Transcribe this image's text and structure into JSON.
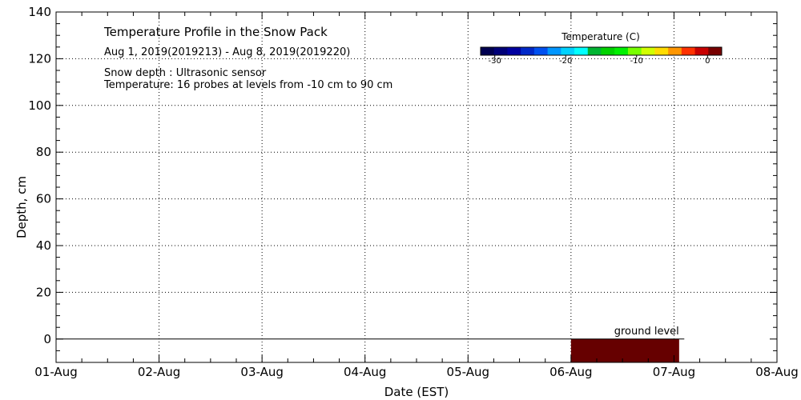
{
  "chart_data": {
    "type": "heatmap",
    "title": "Temperature Profile in the Snow Pack",
    "subtitle": "Aug  1, 2019(2019213) - Aug  8, 2019(2019220)",
    "notes": [
      "Snow depth : Ultrasonic sensor",
      "Temperature: 16 probes at levels from -10 cm to 90 cm"
    ],
    "xlabel": "Date (EST)",
    "ylabel": "Depth, cm",
    "x_tick_labels": [
      "01-Aug",
      "02-Aug",
      "03-Aug",
      "04-Aug",
      "05-Aug",
      "06-Aug",
      "07-Aug",
      "08-Aug"
    ],
    "xlim_days": [
      1,
      8
    ],
    "y_ticks": [
      0,
      20,
      40,
      60,
      80,
      100,
      120,
      140
    ],
    "ylim": [
      -10,
      140
    ],
    "grid": true,
    "ground_level": {
      "label": "ground level",
      "depth": 0,
      "line_start_day": 1,
      "line_end_day": 7.1
    },
    "cells": [
      {
        "x_start_day": 6.0,
        "x_end_day": 7.05,
        "y_start": -10,
        "y_end": 0,
        "color": "#660000"
      }
    ],
    "colorbar": {
      "label": "Temperature (C)",
      "min": -32,
      "max": 2,
      "ticks": [
        -30,
        -20,
        -10,
        0
      ],
      "tick_labels": [
        "-30",
        "-20",
        "-10",
        "0"
      ],
      "colors": [
        "#000050",
        "#000078",
        "#0000a0",
        "#0028c8",
        "#0050f0",
        "#0096ff",
        "#00d2ff",
        "#00ffff",
        "#00b432",
        "#00d200",
        "#00f000",
        "#78ff00",
        "#d2ff00",
        "#ffdc00",
        "#ff9600",
        "#ff3200",
        "#c80000",
        "#780000"
      ],
      "position": "top-right"
    }
  }
}
